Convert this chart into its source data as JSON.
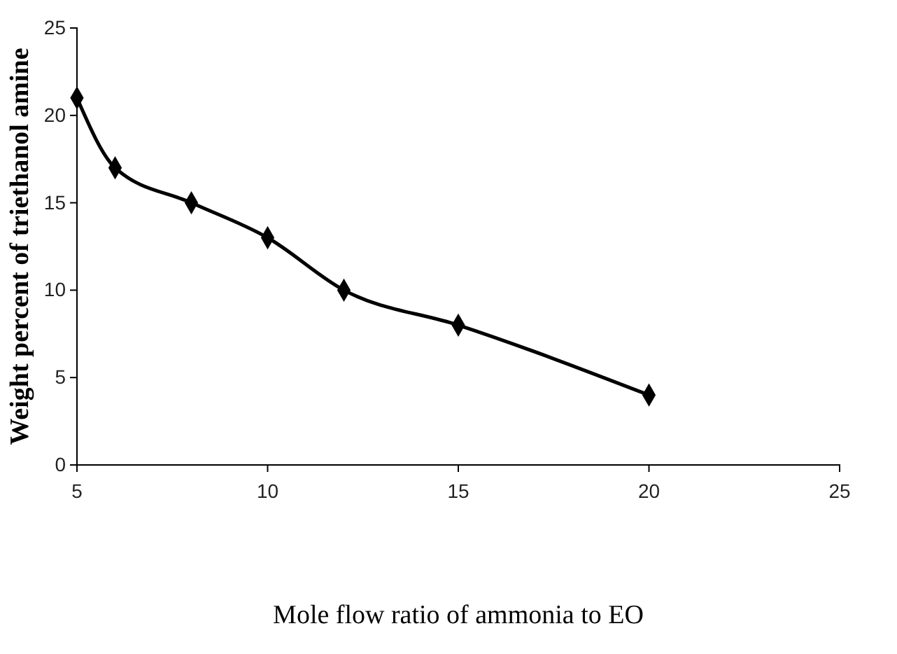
{
  "chart_data": {
    "type": "line",
    "xlabel": "Mole flow ratio of ammonia to EO",
    "ylabel": "Weight percent of triethanol amine",
    "x": [
      5,
      6,
      8,
      10,
      12,
      15,
      20
    ],
    "series": [
      {
        "color": "#000000",
        "values": [
          21,
          17,
          15,
          13,
          10,
          8,
          4
        ]
      }
    ],
    "xlim": [
      5,
      25
    ],
    "xticks": [
      5,
      10,
      15,
      20,
      25
    ],
    "ylim": [
      0,
      25
    ],
    "yticks": [
      0,
      5,
      10,
      15,
      20,
      25
    ],
    "grid": false,
    "marker": "diamond",
    "line_style": "solid"
  }
}
